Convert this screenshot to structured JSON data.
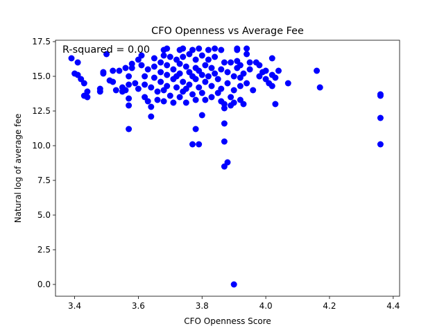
{
  "chart_data": {
    "type": "scatter",
    "title": "CFO Openness vs Average Fee",
    "xlabel": "CFO Openness Score",
    "ylabel": "Natural log of average fee",
    "xlim": [
      3.34,
      4.42
    ],
    "ylim": [
      -0.85,
      17.6
    ],
    "xticks": [
      "3.4",
      "3.6",
      "3.8",
      "4.0",
      "4.2",
      "4.4"
    ],
    "yticks": [
      "0.0",
      "2.5",
      "5.0",
      "7.5",
      "10.0",
      "12.5",
      "15.0",
      "17.5"
    ],
    "grid": false,
    "legend": "none",
    "annotation": "R-squared = 0.00",
    "marker_color": "#0000ff",
    "points": [
      [
        3.39,
        16.3
      ],
      [
        3.41,
        16.0
      ],
      [
        3.4,
        15.2
      ],
      [
        3.41,
        15.1
      ],
      [
        3.42,
        14.8
      ],
      [
        3.43,
        14.5
      ],
      [
        3.44,
        13.9
      ],
      [
        3.43,
        13.6
      ],
      [
        3.44,
        13.5
      ],
      [
        3.48,
        14.1
      ],
      [
        3.48,
        13.9
      ],
      [
        3.49,
        15.3
      ],
      [
        3.49,
        15.2
      ],
      [
        3.5,
        16.6
      ],
      [
        3.51,
        14.7
      ],
      [
        3.52,
        14.6
      ],
      [
        3.52,
        15.4
      ],
      [
        3.53,
        14.0
      ],
      [
        3.54,
        15.4
      ],
      [
        3.55,
        14.2
      ],
      [
        3.55,
        13.9
      ],
      [
        3.56,
        15.6
      ],
      [
        3.56,
        14.0
      ],
      [
        3.57,
        14.4
      ],
      [
        3.57,
        15.0
      ],
      [
        3.57,
        13.4
      ],
      [
        3.57,
        12.9
      ],
      [
        3.57,
        11.2
      ],
      [
        3.58,
        15.9
      ],
      [
        3.58,
        15.6
      ],
      [
        3.59,
        14.5
      ],
      [
        3.6,
        14.1
      ],
      [
        3.6,
        16.2
      ],
      [
        3.61,
        16.5
      ],
      [
        3.61,
        15.8
      ],
      [
        3.62,
        15.0
      ],
      [
        3.62,
        14.4
      ],
      [
        3.62,
        13.5
      ],
      [
        3.63,
        13.2
      ],
      [
        3.63,
        15.5
      ],
      [
        3.64,
        14.2
      ],
      [
        3.64,
        12.8
      ],
      [
        3.64,
        12.1
      ],
      [
        3.65,
        16.3
      ],
      [
        3.65,
        15.7
      ],
      [
        3.65,
        14.9
      ],
      [
        3.66,
        13.9
      ],
      [
        3.66,
        13.3
      ],
      [
        3.67,
        16.0
      ],
      [
        3.67,
        15.3
      ],
      [
        3.67,
        14.6
      ],
      [
        3.68,
        16.9
      ],
      [
        3.68,
        16.5
      ],
      [
        3.68,
        14.0
      ],
      [
        3.68,
        13.2
      ],
      [
        3.69,
        17.0
      ],
      [
        3.69,
        15.8
      ],
      [
        3.69,
        15.1
      ],
      [
        3.69,
        14.3
      ],
      [
        3.7,
        16.4
      ],
      [
        3.7,
        13.6
      ],
      [
        3.71,
        15.5
      ],
      [
        3.71,
        14.8
      ],
      [
        3.71,
        13.1
      ],
      [
        3.72,
        16.2
      ],
      [
        3.72,
        15.0
      ],
      [
        3.72,
        14.2
      ],
      [
        3.73,
        16.9
      ],
      [
        3.73,
        15.9
      ],
      [
        3.73,
        15.2
      ],
      [
        3.73,
        13.5
      ],
      [
        3.74,
        17.0
      ],
      [
        3.74,
        16.4
      ],
      [
        3.74,
        14.6
      ],
      [
        3.74,
        13.9
      ],
      [
        3.75,
        15.7
      ],
      [
        3.75,
        14.1
      ],
      [
        3.75,
        13.1
      ],
      [
        3.76,
        16.6
      ],
      [
        3.76,
        15.3
      ],
      [
        3.76,
        14.4
      ],
      [
        3.77,
        16.9
      ],
      [
        3.77,
        15.0
      ],
      [
        3.77,
        13.7
      ],
      [
        3.77,
        10.1
      ],
      [
        3.78,
        16.2
      ],
      [
        3.78,
        15.6
      ],
      [
        3.78,
        14.8
      ],
      [
        3.78,
        13.3
      ],
      [
        3.78,
        11.2
      ],
      [
        3.79,
        17.0
      ],
      [
        3.79,
        15.4
      ],
      [
        3.79,
        14.2
      ],
      [
        3.79,
        10.1
      ],
      [
        3.8,
        16.5
      ],
      [
        3.8,
        15.1
      ],
      [
        3.8,
        12.2
      ],
      [
        3.8,
        13.8
      ],
      [
        3.81,
        15.8
      ],
      [
        3.81,
        14.6
      ],
      [
        3.81,
        13.3
      ],
      [
        3.82,
        16.9
      ],
      [
        3.82,
        16.2
      ],
      [
        3.82,
        15.0
      ],
      [
        3.83,
        15.6
      ],
      [
        3.83,
        14.3
      ],
      [
        3.83,
        13.5
      ],
      [
        3.84,
        17.0
      ],
      [
        3.84,
        16.4
      ],
      [
        3.84,
        15.2
      ],
      [
        3.85,
        14.8
      ],
      [
        3.85,
        13.8
      ],
      [
        3.86,
        16.9
      ],
      [
        3.86,
        15.5
      ],
      [
        3.86,
        14.1
      ],
      [
        3.86,
        13.2
      ],
      [
        3.87,
        16.0
      ],
      [
        3.87,
        13.0
      ],
      [
        3.87,
        12.7
      ],
      [
        3.87,
        11.6
      ],
      [
        3.87,
        10.3
      ],
      [
        3.87,
        8.5
      ],
      [
        3.88,
        15.3
      ],
      [
        3.88,
        14.5
      ],
      [
        3.88,
        8.8
      ],
      [
        3.89,
        16.0
      ],
      [
        3.89,
        13.5
      ],
      [
        3.89,
        12.9
      ],
      [
        3.9,
        15.0
      ],
      [
        3.9,
        14.0
      ],
      [
        3.9,
        13.1
      ],
      [
        3.9,
        0.0
      ],
      [
        3.91,
        16.9
      ],
      [
        3.91,
        17.0
      ],
      [
        3.91,
        16.1
      ],
      [
        3.91,
        15.6
      ],
      [
        3.92,
        15.8
      ],
      [
        3.92,
        14.9
      ],
      [
        3.92,
        14.3
      ],
      [
        3.92,
        13.3
      ],
      [
        3.93,
        15.2
      ],
      [
        3.93,
        13.0
      ],
      [
        3.94,
        16.6
      ],
      [
        3.94,
        17.0
      ],
      [
        3.94,
        14.5
      ],
      [
        3.95,
        16.0
      ],
      [
        3.95,
        15.5
      ],
      [
        3.96,
        14.0
      ],
      [
        3.97,
        16.0
      ],
      [
        3.98,
        15.8
      ],
      [
        3.98,
        15.0
      ],
      [
        3.99,
        15.3
      ],
      [
        4.0,
        15.4
      ],
      [
        4.0,
        14.8
      ],
      [
        4.01,
        14.5
      ],
      [
        4.02,
        16.3
      ],
      [
        4.02,
        15.1
      ],
      [
        4.02,
        14.3
      ],
      [
        4.03,
        13.0
      ],
      [
        4.03,
        14.9
      ],
      [
        4.04,
        15.4
      ],
      [
        4.07,
        14.5
      ],
      [
        4.16,
        15.4
      ],
      [
        4.17,
        14.2
      ],
      [
        4.36,
        13.7
      ],
      [
        4.36,
        13.6
      ],
      [
        4.36,
        12.0
      ],
      [
        4.36,
        10.1
      ]
    ]
  }
}
